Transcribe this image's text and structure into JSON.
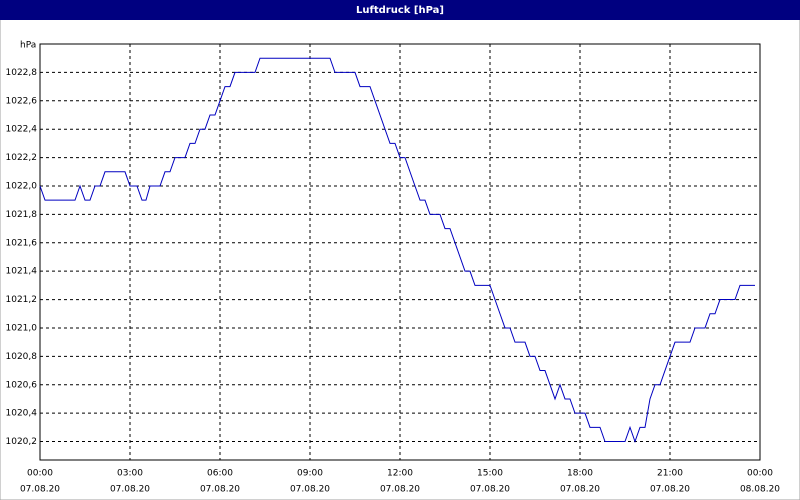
{
  "chart_data": {
    "type": "line",
    "title": "Luftdruck [hPa]",
    "y_unit": "hPa",
    "x": [
      0,
      0.167,
      1.167,
      1.333,
      1.5,
      1.667,
      1.833,
      2,
      2.167,
      2.833,
      3,
      3.233,
      3.4,
      3.533,
      3.667,
      4,
      4.167,
      4.333,
      4.5,
      4.833,
      5,
      5.167,
      5.333,
      5.5,
      5.667,
      5.833,
      6,
      6.167,
      6.333,
      6.5,
      7.167,
      7.333,
      9.667,
      9.833,
      10.5,
      10.667,
      11,
      11.167,
      11.667,
      11.833,
      12,
      12.167,
      12.5,
      12.667,
      12.833,
      13,
      13.333,
      13.5,
      13.667,
      14.167,
      14.333,
      14.5,
      15,
      15.333,
      15.5,
      15.667,
      15.833,
      16.167,
      16.333,
      16.5,
      16.667,
      16.833,
      17.167,
      17.333,
      17.5,
      17.667,
      17.833,
      18.167,
      18.333,
      18.667,
      18.833,
      19.5,
      19.667,
      19.833,
      20,
      20.167,
      20.333,
      20.5,
      20.667,
      20.833,
      21.167,
      21.667,
      21.833,
      22.167,
      22.333,
      22.5,
      22.667,
      23.167,
      23.333,
      23.833
    ],
    "series": [
      {
        "name": "Luftdruck",
        "color": "#0000c0",
        "values": [
          1022.0,
          1021.9,
          1021.9,
          1022.0,
          1021.9,
          1021.9,
          1022.0,
          1022.0,
          1022.1,
          1022.1,
          1022.0,
          1022.0,
          1021.9,
          1021.9,
          1022.0,
          1022.0,
          1022.1,
          1022.1,
          1022.2,
          1022.2,
          1022.3,
          1022.3,
          1022.4,
          1022.4,
          1022.5,
          1022.5,
          1022.6,
          1022.7,
          1022.7,
          1022.8,
          1022.8,
          1022.9,
          1022.9,
          1022.8,
          1022.8,
          1022.7,
          1022.7,
          1022.6,
          1022.3,
          1022.3,
          1022.2,
          1022.2,
          1022.0,
          1021.9,
          1021.9,
          1021.8,
          1021.8,
          1021.7,
          1021.7,
          1021.4,
          1021.4,
          1021.3,
          1021.3,
          1021.1,
          1021.0,
          1021.0,
          1020.9,
          1020.9,
          1020.8,
          1020.8,
          1020.7,
          1020.7,
          1020.5,
          1020.6,
          1020.5,
          1020.5,
          1020.4,
          1020.4,
          1020.3,
          1020.3,
          1020.2,
          1020.2,
          1020.3,
          1020.2,
          1020.3,
          1020.3,
          1020.5,
          1020.6,
          1020.6,
          1020.7,
          1020.9,
          1020.9,
          1021.0,
          1021.0,
          1021.1,
          1021.1,
          1021.2,
          1021.2,
          1021.3,
          1021.3
        ]
      }
    ],
    "xlim": [
      0,
      24
    ],
    "xticks": [
      {
        "value": 0,
        "label": "00:00",
        "date": "07.08.20"
      },
      {
        "value": 3,
        "label": "03:00",
        "date": "07.08.20"
      },
      {
        "value": 6,
        "label": "06:00",
        "date": "07.08.20"
      },
      {
        "value": 9,
        "label": "09:00",
        "date": "07.08.20"
      },
      {
        "value": 12,
        "label": "12:00",
        "date": "07.08.20"
      },
      {
        "value": 15,
        "label": "15:00",
        "date": "07.08.20"
      },
      {
        "value": 18,
        "label": "18:00",
        "date": "07.08.20"
      },
      {
        "value": 21,
        "label": "21:00",
        "date": "07.08.20"
      },
      {
        "value": 24,
        "label": "00:00",
        "date": "08.08.20"
      }
    ],
    "ylim": [
      1020.07,
      1023.0
    ],
    "yticks": [
      {
        "value": 1020.2,
        "label": "1020,2"
      },
      {
        "value": 1020.4,
        "label": "1020,4"
      },
      {
        "value": 1020.6,
        "label": "1020,6"
      },
      {
        "value": 1020.8,
        "label": "1020,8"
      },
      {
        "value": 1021.0,
        "label": "1021,0"
      },
      {
        "value": 1021.2,
        "label": "1021,2"
      },
      {
        "value": 1021.4,
        "label": "1021,4"
      },
      {
        "value": 1021.6,
        "label": "1021,6"
      },
      {
        "value": 1021.8,
        "label": "1021,8"
      },
      {
        "value": 1022.0,
        "label": "1022,0"
      },
      {
        "value": 1022.2,
        "label": "1022,2"
      },
      {
        "value": 1022.4,
        "label": "1022,4"
      },
      {
        "value": 1022.6,
        "label": "1022,6"
      },
      {
        "value": 1022.8,
        "label": "1022,8"
      }
    ],
    "grid": true
  }
}
